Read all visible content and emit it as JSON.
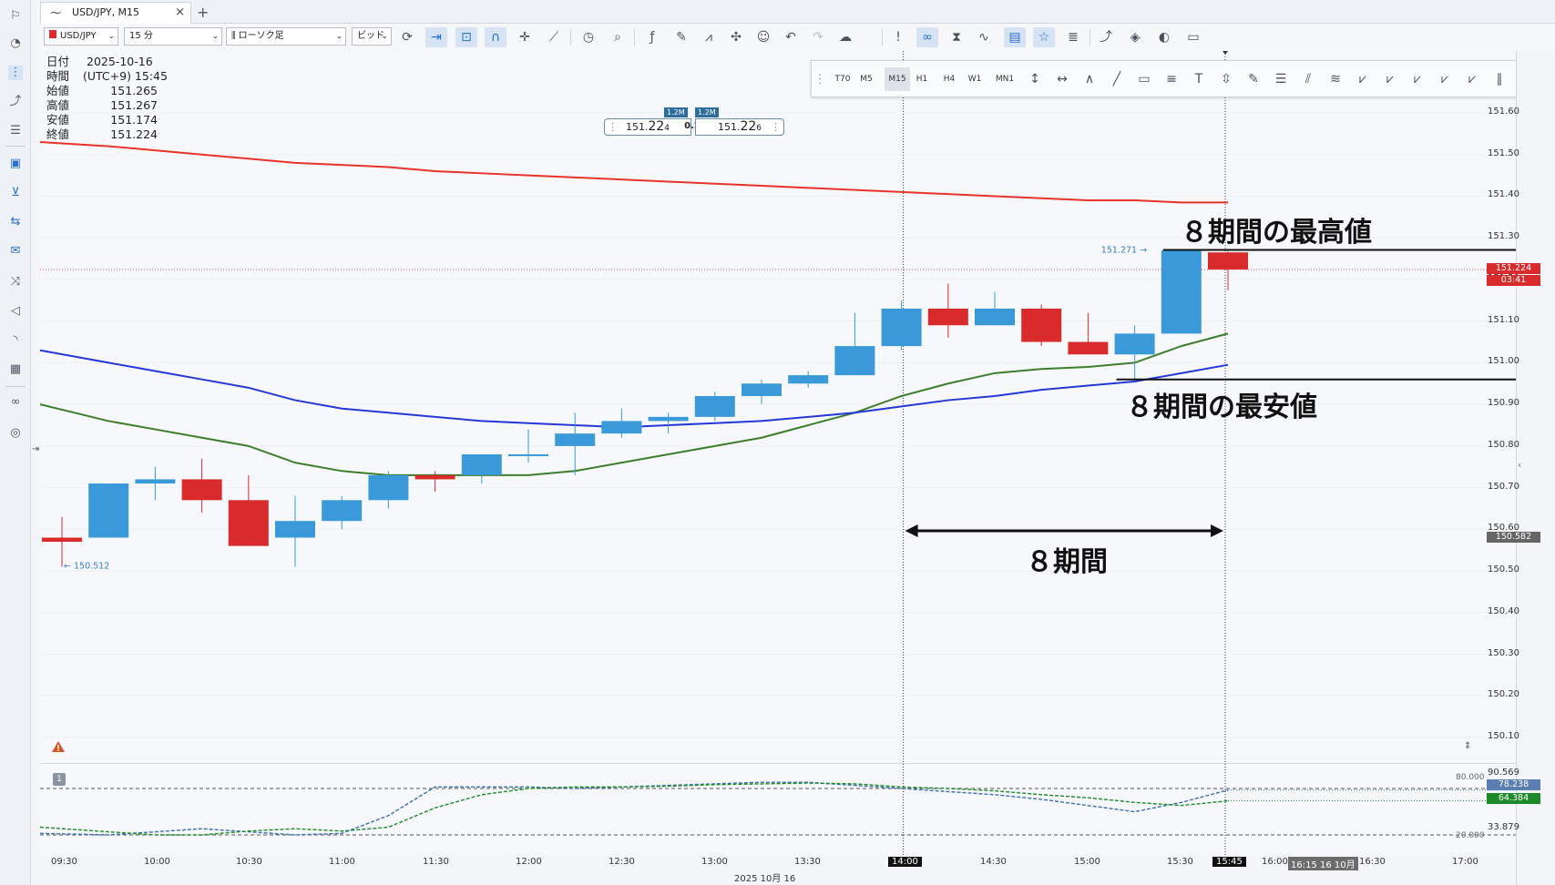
{
  "tab": {
    "title": "USD/JPY, M15",
    "close": "×",
    "add": "+"
  },
  "toolbar": {
    "symbol": "USD/JPY",
    "period": "15 分",
    "chart_type": "ローソク足",
    "price_type": "ビッド"
  },
  "info": {
    "rows": [
      {
        "k": "日付",
        "v": "2025-10-16"
      },
      {
        "k": "時間",
        "v": "(UTC+9) 15:45"
      },
      {
        "k": "始値",
        "v": "151.265"
      },
      {
        "k": "高値",
        "v": "151.267"
      },
      {
        "k": "安値",
        "v": "151.174"
      },
      {
        "k": "終値",
        "v": "151.224"
      }
    ]
  },
  "timeframes": [
    "T70",
    "M5",
    "M15",
    "H1",
    "H4",
    "W1",
    "MN1"
  ],
  "active_timeframe": "M15",
  "ticket": {
    "sell_vol": "1.2M",
    "buy_vol": "1.2M",
    "sell_price_a": "151.",
    "sell_price_b": "22",
    "sell_price_c": "4",
    "spread": "0.2",
    "buy_price_a": "151.",
    "buy_price_b": "22",
    "buy_price_c": "6"
  },
  "price_axis": {
    "ticks": [
      "151.60",
      "151.50",
      "151.40",
      "151.30",
      "151.20",
      "151.10",
      "151.00",
      "150.90",
      "150.80",
      "150.70",
      "150.60",
      "150.50",
      "150.40",
      "150.30",
      "150.20",
      "150.10"
    ],
    "current_price": "151.224",
    "countdown": "03:41",
    "crosshair_price": "150.582",
    "high_label": "151.271",
    "low_label": "150.512"
  },
  "indicator": {
    "pane_number": "1",
    "levels": [
      "90.569",
      "80.000",
      "20.000",
      "33.879"
    ],
    "value_k": "78.238",
    "value_d": "64.384",
    "k_color": "#3d6fb0",
    "d_color": "#1d8a2a"
  },
  "time_axis": {
    "labels": [
      "09:30",
      "10:00",
      "10:30",
      "11:00",
      "11:30",
      "12:00",
      "12:30",
      "13:00",
      "13:30",
      "14:00",
      "14:30",
      "15:00",
      "15:30",
      "15:45",
      "16:00",
      "16:15 16 10月",
      "16:30",
      "17:00"
    ],
    "date_label": "2025 10月 16",
    "highlight_start": "14:00",
    "highlight_end": "15:45"
  },
  "annotations": {
    "highest": "８期間の最高値",
    "lowest": "８期間の最安値",
    "period": "８期間"
  },
  "colors": {
    "bull": "#3a9ad9",
    "bear": "#d92b2b",
    "ma_red": "#e8332a",
    "ma_blue": "#2438d8",
    "ma_green": "#3e7d2a",
    "accent": "#2a6fc9"
  },
  "chart_data": {
    "type": "candlestick",
    "x": [
      "09:30",
      "09:45",
      "10:00",
      "10:15",
      "10:30",
      "10:45",
      "11:00",
      "11:15",
      "11:30",
      "11:45",
      "12:00",
      "12:15",
      "12:30",
      "12:45",
      "13:00",
      "13:15",
      "13:30",
      "13:45",
      "14:00",
      "14:15",
      "14:30",
      "14:45",
      "15:00",
      "15:15",
      "15:30",
      "15:45"
    ],
    "open": [
      150.58,
      150.58,
      150.71,
      150.72,
      150.67,
      150.58,
      150.62,
      150.67,
      150.73,
      150.73,
      150.78,
      150.8,
      150.83,
      150.86,
      150.87,
      150.92,
      150.95,
      150.97,
      151.04,
      151.13,
      151.09,
      151.13,
      151.05,
      151.02,
      151.07,
      151.265
    ],
    "high": [
      150.63,
      150.71,
      150.75,
      150.77,
      150.73,
      150.68,
      150.68,
      150.74,
      150.74,
      150.78,
      150.84,
      150.88,
      150.89,
      150.88,
      150.93,
      150.96,
      150.98,
      151.12,
      151.15,
      151.19,
      151.17,
      151.14,
      151.12,
      151.09,
      151.271,
      151.267
    ],
    "low": [
      150.51,
      150.58,
      150.67,
      150.64,
      150.56,
      150.51,
      150.6,
      150.65,
      150.69,
      150.71,
      150.76,
      150.73,
      150.82,
      150.83,
      150.86,
      150.9,
      150.94,
      150.97,
      151.03,
      151.06,
      151.09,
      151.04,
      151.02,
      150.96,
      151.07,
      151.174
    ],
    "close": [
      150.57,
      150.71,
      150.72,
      150.67,
      150.56,
      150.62,
      150.67,
      150.73,
      150.72,
      150.78,
      150.78,
      150.83,
      150.86,
      150.87,
      150.92,
      150.95,
      150.97,
      151.04,
      151.13,
      151.09,
      151.13,
      151.05,
      151.02,
      151.07,
      151.27,
      151.224
    ],
    "ma_red": [
      151.53,
      151.52,
      151.51,
      151.5,
      151.49,
      151.48,
      151.475,
      151.47,
      151.46,
      151.455,
      151.45,
      151.445,
      151.44,
      151.435,
      151.43,
      151.425,
      151.42,
      151.415,
      151.41,
      151.405,
      151.4,
      151.395,
      151.39,
      151.39,
      151.385,
      151.385
    ],
    "ma_blue": [
      151.03,
      151.0,
      150.98,
      150.96,
      150.94,
      150.91,
      150.89,
      150.88,
      150.87,
      150.86,
      150.855,
      150.85,
      150.845,
      150.85,
      150.855,
      150.86,
      150.87,
      150.88,
      150.895,
      150.91,
      150.92,
      150.935,
      150.945,
      150.955,
      150.975,
      150.995
    ],
    "ma_green": [
      150.9,
      150.86,
      150.84,
      150.82,
      150.8,
      150.76,
      150.74,
      150.73,
      150.73,
      150.73,
      150.73,
      150.74,
      150.76,
      150.78,
      150.8,
      150.82,
      150.85,
      150.88,
      150.92,
      150.95,
      150.975,
      150.985,
      150.99,
      151.0,
      151.04,
      151.07
    ],
    "stoch_k": [
      22,
      20,
      24,
      28,
      24,
      20,
      22,
      45,
      82,
      82,
      82,
      80,
      82,
      84,
      86,
      88,
      88,
      84,
      80,
      76,
      72,
      66,
      58,
      50,
      62,
      78
    ],
    "stoch_d": [
      30,
      24,
      20,
      20,
      25,
      28,
      25,
      30,
      55,
      72,
      80,
      82,
      82,
      83,
      85,
      86,
      87,
      86,
      82,
      80,
      77,
      72,
      68,
      62,
      58,
      64
    ],
    "ylim": [
      150.05,
      151.68
    ]
  }
}
